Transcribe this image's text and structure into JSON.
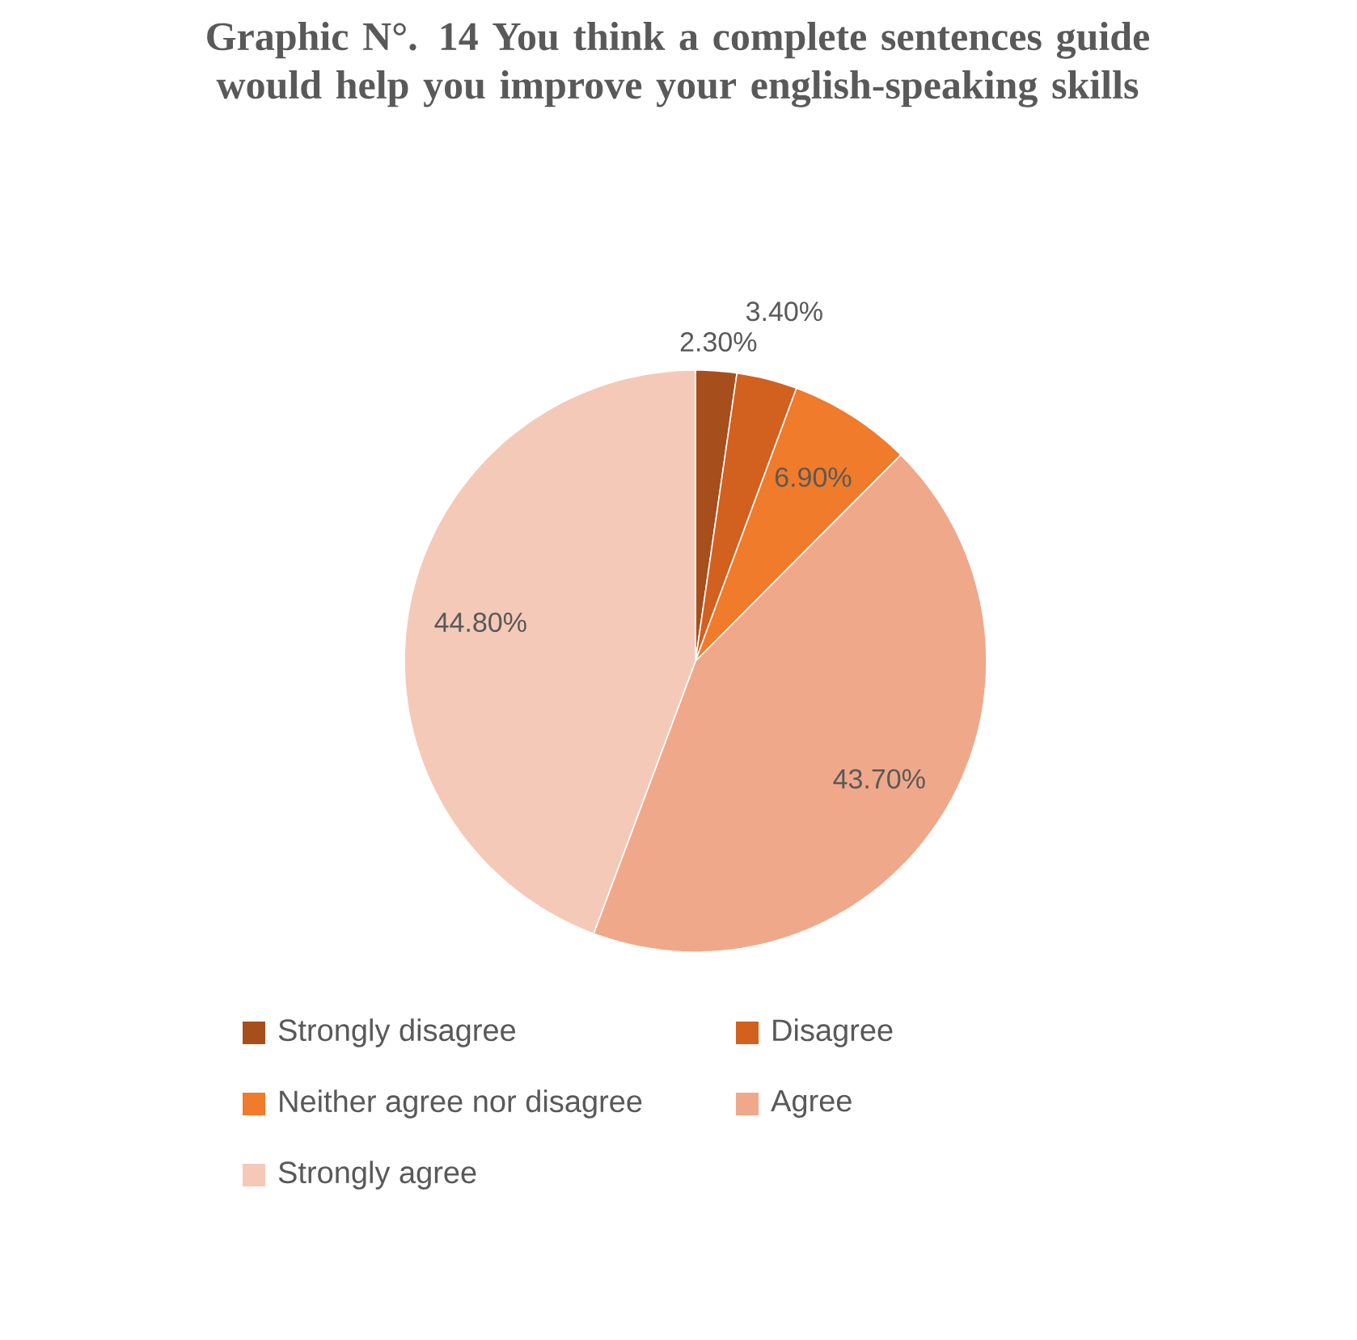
{
  "chart_data": {
    "type": "pie",
    "title": "Graphic N°. 14 You think a complete sentences guide would help you improve your english-speaking skills",
    "categories": [
      "Strongly disagree",
      "Disagree",
      "Neither agree nor disagree",
      "Agree",
      "Strongly agree"
    ],
    "values": [
      2.3,
      3.4,
      6.9,
      43.7,
      44.8
    ],
    "value_labels": [
      "2.30%",
      "3.40%",
      "6.90%",
      "43.70%",
      "44.80%"
    ],
    "colors": [
      "#a64f1c",
      "#d2601f",
      "#f07b2b",
      "#f0a88a",
      "#f5c9b8"
    ],
    "legend": "bottom"
  }
}
